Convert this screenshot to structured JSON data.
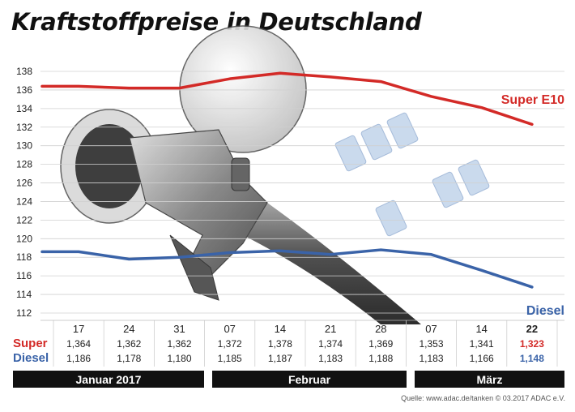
{
  "title": "Kraftstoffpreise in Deutschland",
  "source": "Quelle: www.adac.de/tanken   © 03.2017  ADAC e.V.",
  "colors": {
    "super": "#d32a27",
    "diesel": "#3a63a8",
    "bar": "#111111"
  },
  "chart_data": {
    "type": "line",
    "title": "Kraftstoffpreise in Deutschland",
    "xlabel": "",
    "ylabel": "",
    "ylim": [
      112,
      138
    ],
    "yticks": [
      "112",
      "114",
      "116",
      "118",
      "120",
      "122",
      "124",
      "126",
      "128",
      "130",
      "132",
      "134",
      "136",
      "138"
    ],
    "grid": true,
    "x": [
      "17",
      "24",
      "31",
      "07",
      "14",
      "21",
      "28",
      "07",
      "14",
      "22"
    ],
    "months": [
      "Januar 2017",
      "Februar",
      "März"
    ],
    "series": [
      {
        "name": "Super E10",
        "row_label": "Super",
        "values": [
          136.4,
          136.2,
          136.2,
          137.2,
          137.8,
          137.4,
          136.9,
          135.3,
          134.1,
          132.3
        ],
        "labels": [
          "1,364",
          "1,362",
          "1,362",
          "1,372",
          "1,378",
          "1,374",
          "1,369",
          "1,353",
          "1,341",
          "1,323"
        ]
      },
      {
        "name": "Diesel",
        "row_label": "Diesel",
        "values": [
          118.6,
          117.8,
          118.0,
          118.5,
          118.7,
          118.3,
          118.8,
          118.3,
          116.6,
          114.8
        ],
        "labels": [
          "1,186",
          "1,178",
          "1,180",
          "1,185",
          "1,187",
          "1,183",
          "1,188",
          "1,183",
          "1,166",
          "1,148"
        ]
      }
    ]
  }
}
